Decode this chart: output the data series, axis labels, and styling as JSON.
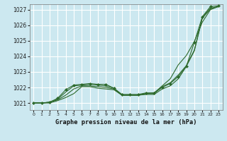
{
  "title": "Graphe pression niveau de la mer (hPa)",
  "bg_color": "#cce8f0",
  "grid_color": "#ffffff",
  "line_color": "#2d6a2d",
  "marker_color": "#2d6a2d",
  "ylim": [
    1020.55,
    1027.35
  ],
  "xlim": [
    -0.5,
    23.5
  ],
  "yticks": [
    1021,
    1022,
    1023,
    1024,
    1025,
    1026,
    1027
  ],
  "xticks": [
    0,
    1,
    2,
    3,
    4,
    5,
    6,
    7,
    8,
    9,
    10,
    11,
    12,
    13,
    14,
    15,
    16,
    17,
    18,
    19,
    20,
    21,
    22,
    23
  ],
  "series_plain": [
    [
      1021.0,
      1021.0,
      1021.0,
      1021.15,
      1021.35,
      1021.6,
      1022.05,
      1022.05,
      1021.95,
      1021.9,
      1021.85,
      1021.5,
      1021.5,
      1021.5,
      1021.55,
      1021.55,
      1021.9,
      1022.1,
      1022.55,
      1023.35,
      1024.35,
      1026.45,
      1027.05,
      1027.2
    ],
    [
      1021.0,
      1021.0,
      1021.05,
      1021.2,
      1021.5,
      1021.9,
      1022.1,
      1022.1,
      1022.05,
      1022.0,
      1021.9,
      1021.5,
      1021.5,
      1021.5,
      1021.6,
      1021.6,
      1022.05,
      1022.3,
      1022.8,
      1023.4,
      1024.4,
      1026.5,
      1027.1,
      1027.2
    ],
    [
      1021.0,
      1021.0,
      1021.05,
      1021.25,
      1021.7,
      1022.1,
      1022.15,
      1022.2,
      1022.15,
      1022.1,
      1021.95,
      1021.5,
      1021.5,
      1021.5,
      1021.6,
      1021.65,
      1022.1,
      1022.55,
      1023.45,
      1024.05,
      1024.95,
      1026.2,
      1027.0,
      1027.2
    ]
  ],
  "series_marker": [
    1021.0,
    1021.0,
    1021.05,
    1021.3,
    1021.85,
    1022.15,
    1022.2,
    1022.25,
    1022.2,
    1022.2,
    1021.95,
    1021.55,
    1021.55,
    1021.55,
    1021.65,
    1021.65,
    1022.0,
    1022.25,
    1022.7,
    1023.35,
    1024.9,
    1026.55,
    1027.2,
    1027.25
  ]
}
